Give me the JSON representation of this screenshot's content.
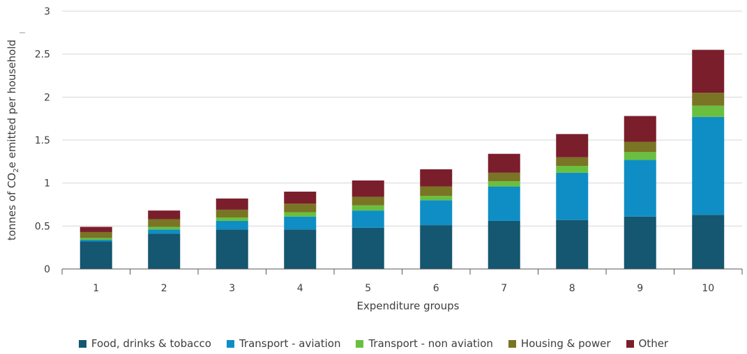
{
  "chart_data": {
    "type": "bar",
    "stacked": true,
    "xlabel": "Expenditure groups",
    "ylabel": "tonnes of CO2e emitted per household",
    "ylabel_parts": [
      "tonnes of CO",
      "2",
      "e emitted per household"
    ],
    "ylim": [
      0,
      3
    ],
    "yticks": [
      "0",
      "0.5",
      "1",
      "1.5",
      "2",
      "2.5",
      "3"
    ],
    "grid": true,
    "legend_position": "bottom",
    "categories": [
      "1",
      "2",
      "3",
      "4",
      "5",
      "6",
      "7",
      "8",
      "9",
      "10"
    ],
    "series": [
      {
        "name": "Food, drinks & tobacco",
        "color": "#155670",
        "values": [
          0.32,
          0.41,
          0.46,
          0.46,
          0.48,
          0.51,
          0.56,
          0.57,
          0.61,
          0.63
        ]
      },
      {
        "name": "Transport - aviation",
        "color": "#0e8ec4",
        "values": [
          0.02,
          0.05,
          0.1,
          0.15,
          0.2,
          0.29,
          0.4,
          0.55,
          0.66,
          1.14
        ]
      },
      {
        "name": "Transport - non aviation",
        "color": "#6abf3f",
        "values": [
          0.02,
          0.03,
          0.04,
          0.05,
          0.06,
          0.05,
          0.06,
          0.08,
          0.09,
          0.13
        ]
      },
      {
        "name": "Housing & power",
        "color": "#7a7425",
        "values": [
          0.07,
          0.09,
          0.09,
          0.1,
          0.1,
          0.11,
          0.1,
          0.1,
          0.12,
          0.15
        ]
      },
      {
        "name": "Other",
        "color": "#7a1e2c",
        "values": [
          0.06,
          0.1,
          0.13,
          0.14,
          0.19,
          0.2,
          0.22,
          0.27,
          0.3,
          0.5
        ]
      }
    ]
  }
}
